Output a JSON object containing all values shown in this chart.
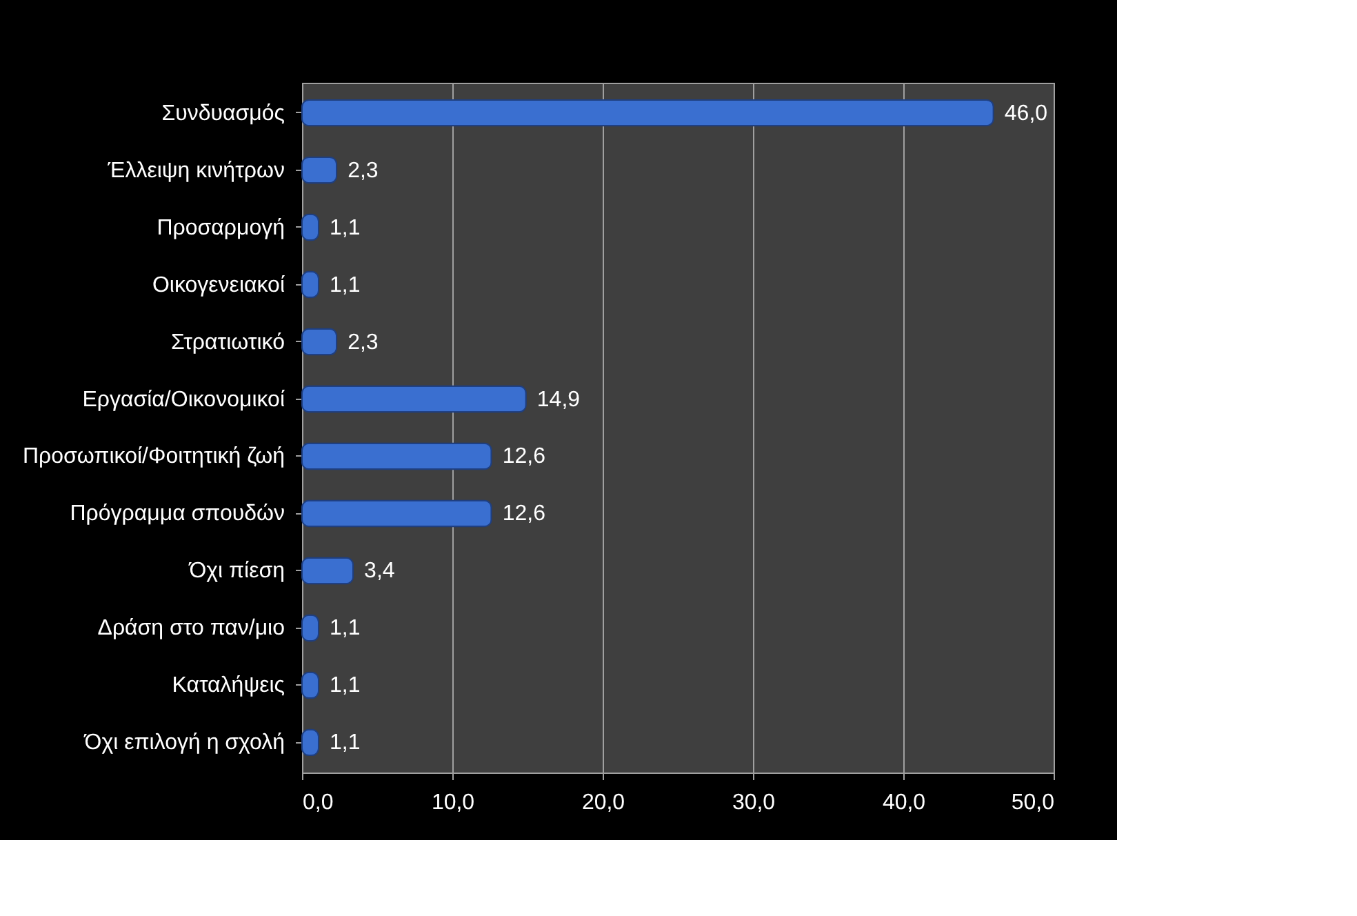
{
  "chart_data": {
    "type": "bar",
    "orientation": "horizontal",
    "categories": [
      "Συνδυασμός",
      "Έλλειψη κινήτρων",
      "Προσαρμογή ",
      "Οικογενειακοί",
      "Στρατιωτικό",
      "Εργασία/Οικονομικοί",
      "Προσωπικοί/Φοιτητική ζωή",
      "Πρόγραμμα σπουδών",
      "Όχι πίεση",
      "Δράση στο παν/μιο",
      "Καταλήψεις",
      "Όχι επιλογή η σχολή"
    ],
    "values": [
      46.0,
      2.3,
      1.1,
      1.1,
      2.3,
      14.9,
      12.6,
      12.6,
      3.4,
      1.1,
      1.1,
      1.1
    ],
    "value_labels": [
      "46,0",
      "2,3",
      "1,1",
      "1,1",
      "2,3",
      "14,9",
      "12,6",
      "12,6",
      "3,4",
      "1,1",
      "1,1",
      "1,1"
    ],
    "color": "#3a6fd0",
    "xlim": [
      0,
      50
    ],
    "xticks": [
      {
        "value": 0,
        "label": "0,0"
      },
      {
        "value": 10,
        "label": "10,0"
      },
      {
        "value": 20,
        "label": "20,0"
      },
      {
        "value": 30,
        "label": "30,0"
      },
      {
        "value": 40,
        "label": "40,0"
      },
      {
        "value": 50,
        "label": "50,0"
      }
    ],
    "grid": "x"
  }
}
